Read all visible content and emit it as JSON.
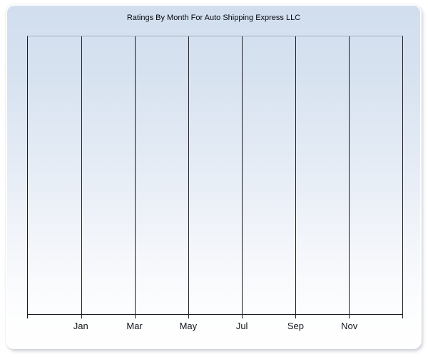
{
  "chart": {
    "title": "Ratings By Month For Auto Shipping Express LLC"
  },
  "axis": {
    "labels": [
      "Jan",
      "Mar",
      "May",
      "Jul",
      "Sep",
      "Nov"
    ]
  },
  "colors": {
    "panel_gradient_top": "#d1deee",
    "panel_gradient_bottom": "#ffffff",
    "gridline": "#1c1c24",
    "plot_top_border": "#a7aebc",
    "title_text": "#06060f",
    "axis_label_text": "#14141c"
  },
  "chart_data": {
    "type": "line",
    "title": "Ratings By Month For Auto Shipping Express LLC",
    "categories": [
      "Jan",
      "Mar",
      "May",
      "Jul",
      "Sep",
      "Nov"
    ],
    "series": [],
    "xlabel": "",
    "ylabel": "",
    "legend": "none",
    "grid": "vertical gridlines only, 6 internal lines dividing plot into 7 columns",
    "plot_note": "empty plot area - no data points, bars or lines rendered",
    "y_axis_labels": "none visible"
  }
}
